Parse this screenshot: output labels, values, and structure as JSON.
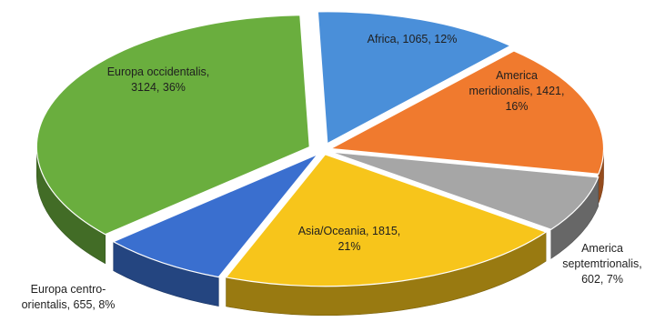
{
  "chart_data": {
    "type": "pie",
    "title": "",
    "style": "3d-exploded",
    "slices": [
      {
        "name": "Africa",
        "value": 1065,
        "percent": "12%",
        "color": "#4a8fd9",
        "label_lines": [
          "Africa, 1065, 12%"
        ]
      },
      {
        "name": "America meridionalis",
        "value": 1421,
        "percent": "16%",
        "color": "#f07a2e",
        "label_lines": [
          "America",
          "meridionalis, 1421,",
          "16%"
        ]
      },
      {
        "name": "America septemtrionalis",
        "value": 602,
        "percent": "7%",
        "color": "#a6a6a6",
        "label_lines": [
          "America",
          "septemtrionalis,",
          "602, 7%"
        ]
      },
      {
        "name": "Asia/Oceania",
        "value": 1815,
        "percent": "21%",
        "color": "#f7c51b",
        "label_lines": [
          "Asia/Oceania, 1815,",
          "21%"
        ]
      },
      {
        "name": "Europa centro-orientalis",
        "value": 655,
        "percent": "8%",
        "color": "#3a6fcf",
        "label_lines": [
          "Europa centro-",
          "orientalis, 655, 8%"
        ]
      },
      {
        "name": "Europa occidentalis",
        "value": 3124,
        "percent": "36%",
        "color": "#6aae3e",
        "label_lines": [
          "Europa occidentalis,",
          "3124, 36%"
        ]
      }
    ]
  }
}
